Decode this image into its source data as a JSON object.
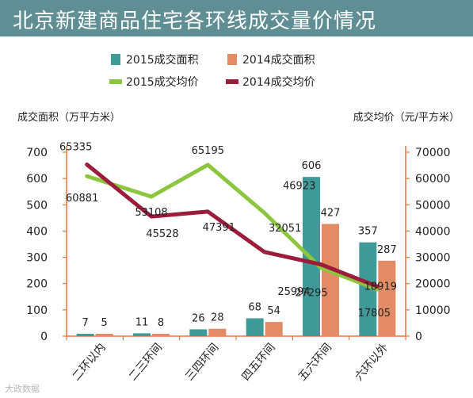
{
  "title": "北京新建商品住宅各环线成交量价情况",
  "watermark": "大政数据",
  "chart_data": {
    "type": "bar",
    "title": "北京新建商品住宅各环线成交量价情况",
    "categories": [
      "二环以内",
      "二三环间",
      "三四环间",
      "四五环间",
      "五六环间",
      "六环以外"
    ],
    "ylabel_left": "成交面积（万平方米）",
    "ylabel_right": "成交均价（元/平方米）",
    "ylim_left": [
      0,
      700
    ],
    "ylim_right": [
      0,
      70000
    ],
    "left_ticks": [
      "0",
      "100",
      "200",
      "300",
      "400",
      "500",
      "600",
      "700"
    ],
    "right_ticks": [
      "0",
      "10000",
      "20000",
      "30000",
      "40000",
      "50000",
      "60000",
      "70000"
    ],
    "legend_position": "top",
    "bar_series": [
      {
        "name": "2015成交面积",
        "color": "#3f9b98",
        "values": [
          7,
          11,
          26,
          68,
          606,
          357
        ]
      },
      {
        "name": "2014成交面积",
        "color": "#e28b64",
        "values": [
          5,
          8,
          28,
          54,
          427,
          287
        ]
      }
    ],
    "line_series": [
      {
        "name": "2015成交均价",
        "color": "#8cc63f",
        "values": [
          60881,
          53108,
          65195,
          46923,
          25994,
          17805
        ]
      },
      {
        "name": "2014成交均价",
        "color": "#9c1c3c",
        "values": [
          65335,
          45528,
          47391,
          32051,
          27295,
          18919
        ]
      }
    ]
  }
}
